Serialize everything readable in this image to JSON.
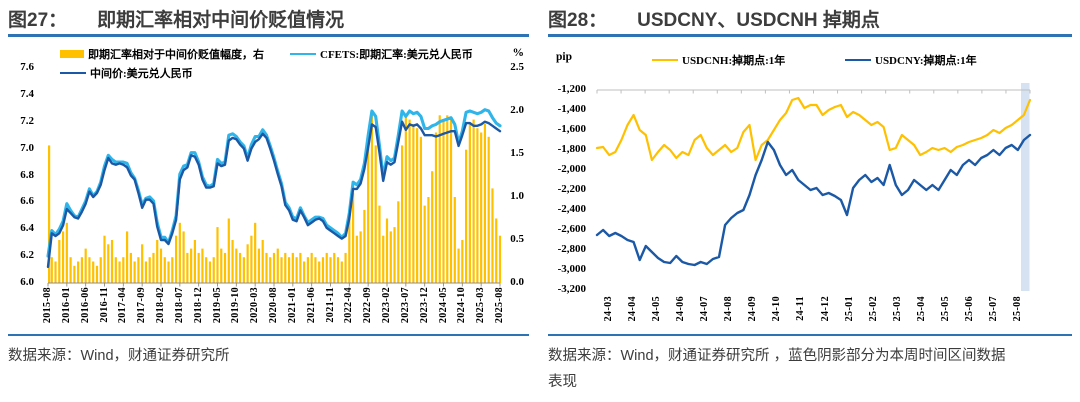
{
  "colors": {
    "accent_rule": "#2E74B5",
    "gold": "#FFC000",
    "navy": "#1B58A6",
    "cyan": "#2FB5E9",
    "band_blue": "#D6E2F2",
    "title_text": "#3d3d3d",
    "source_text": "#3c3c3c"
  },
  "chart_data": [
    {
      "id": "fig27",
      "type": "bar+line",
      "title_label": "图27：",
      "title": "即期汇率相对中间价贬值情况",
      "unit_right": "%",
      "y_left": {
        "min": 6.0,
        "max": 7.6,
        "ticks": [
          "7.6",
          "7.4",
          "7.2",
          "7.0",
          "6.8",
          "6.6",
          "6.4",
          "6.2",
          "6.0"
        ]
      },
      "y_right": {
        "min": 0.0,
        "max": 2.5,
        "ticks": [
          "2.5",
          "2.0",
          "1.5",
          "1.0",
          "0.5",
          "0.0"
        ]
      },
      "x_monthly_start": "2015-08",
      "x_tick_labels": [
        "2015-08",
        "2016-01",
        "2016-06",
        "2016-11",
        "2017-04",
        "2017-09",
        "2018-02",
        "2018-07",
        "2018-12",
        "2019-05",
        "2019-10",
        "2020-03",
        "2020-08",
        "2021-01",
        "2021-06",
        "2021-11",
        "2022-04",
        "2022-09",
        "2023-02",
        "2023-07",
        "2023-12",
        "2024-05",
        "2024-10",
        "2025-03",
        "2025-08"
      ],
      "series": [
        {
          "name": "即期汇率相对于中间价贬值幅度，右",
          "type": "bar",
          "axis": "right",
          "color": "#FFC000",
          "values": [
            1.6,
            0.3,
            0.25,
            0.5,
            0.6,
            0.7,
            0.3,
            0.2,
            0.25,
            0.3,
            0.4,
            0.3,
            0.25,
            0.2,
            0.3,
            0.55,
            0.45,
            0.5,
            0.3,
            0.25,
            0.3,
            0.6,
            0.35,
            0.25,
            0.3,
            0.45,
            0.25,
            0.3,
            0.35,
            0.5,
            0.4,
            0.3,
            0.25,
            0.3,
            0.55,
            0.7,
            0.6,
            0.35,
            0.4,
            0.5,
            0.35,
            0.4,
            0.3,
            0.25,
            0.3,
            0.65,
            0.4,
            0.35,
            0.75,
            0.5,
            0.4,
            0.35,
            0.3,
            0.45,
            0.55,
            0.7,
            0.4,
            0.5,
            0.35,
            0.3,
            0.35,
            0.4,
            0.3,
            0.35,
            0.3,
            0.35,
            0.3,
            0.35,
            0.25,
            0.3,
            0.35,
            0.3,
            0.25,
            0.3,
            0.35,
            0.3,
            0.35,
            0.3,
            0.25,
            0.35,
            0.8,
            1.05,
            0.55,
            0.6,
            0.85,
            1.75,
            1.95,
            1.6,
            0.9,
            0.55,
            0.75,
            0.6,
            0.65,
            0.95,
            1.6,
            1.95,
            1.9,
            1.85,
            1.8,
            1.7,
            0.9,
            1.0,
            1.3,
            1.75,
            1.95,
            1.9,
            1.95,
            1.9,
            1.0,
            0.4,
            0.5,
            1.55,
            1.85,
            1.9,
            1.8,
            1.75,
            1.85,
            1.7,
            1.1,
            0.75,
            0.55
          ]
        },
        {
          "name": "CFETS:即期汇率:美元兑人民币",
          "type": "line",
          "axis": "left",
          "color": "#2FB5E9",
          "values": [
            6.2,
            6.39,
            6.36,
            6.4,
            6.46,
            6.59,
            6.54,
            6.5,
            6.49,
            6.55,
            6.61,
            6.7,
            6.65,
            6.68,
            6.75,
            6.87,
            6.95,
            6.92,
            6.9,
            6.9,
            6.9,
            6.89,
            6.82,
            6.78,
            6.69,
            6.58,
            6.63,
            6.64,
            6.61,
            6.45,
            6.34,
            6.34,
            6.3,
            6.39,
            6.5,
            6.81,
            6.87,
            6.88,
            6.97,
            6.97,
            6.9,
            6.79,
            6.73,
            6.72,
            6.74,
            6.92,
            6.89,
            6.9,
            7.1,
            7.11,
            7.09,
            7.05,
            7.02,
            6.93,
            7.03,
            7.09,
            7.09,
            7.14,
            7.1,
            7.02,
            6.93,
            6.83,
            6.74,
            6.6,
            6.56,
            6.49,
            6.48,
            6.56,
            6.5,
            6.45,
            6.47,
            6.49,
            6.49,
            6.48,
            6.43,
            6.41,
            6.39,
            6.37,
            6.34,
            6.37,
            6.52,
            6.75,
            6.73,
            6.77,
            6.89,
            7.1,
            7.28,
            7.24,
            7.02,
            6.79,
            6.94,
            6.91,
            6.93,
            7.1,
            7.28,
            7.24,
            7.28,
            7.26,
            7.27,
            7.24,
            7.15,
            7.15,
            7.17,
            7.18,
            7.2,
            7.21,
            7.22,
            7.23,
            7.18,
            7.04,
            7.13,
            7.27,
            7.28,
            7.27,
            7.26,
            7.27,
            7.29,
            7.28,
            7.23,
            7.19,
            7.17
          ]
        },
        {
          "name": "中间价:美元兑人民币",
          "type": "line",
          "axis": "left",
          "color": "#1B58A6",
          "values": [
            6.12,
            6.37,
            6.35,
            6.37,
            6.43,
            6.55,
            6.52,
            6.49,
            6.48,
            6.53,
            6.59,
            6.68,
            6.64,
            6.67,
            6.73,
            6.84,
            6.93,
            6.89,
            6.88,
            6.89,
            6.88,
            6.86,
            6.8,
            6.77,
            6.67,
            6.56,
            6.62,
            6.62,
            6.59,
            6.42,
            6.32,
            6.32,
            6.29,
            6.37,
            6.47,
            6.77,
            6.84,
            6.86,
            6.95,
            6.94,
            6.88,
            6.77,
            6.71,
            6.71,
            6.72,
            6.89,
            6.87,
            6.88,
            7.06,
            7.08,
            7.07,
            7.03,
            7.0,
            6.91,
            7.0,
            7.05,
            7.07,
            7.11,
            7.08,
            7.0,
            6.91,
            6.81,
            6.72,
            6.58,
            6.54,
            6.47,
            6.46,
            6.54,
            6.49,
            6.43,
            6.45,
            6.47,
            6.48,
            6.46,
            6.41,
            6.39,
            6.37,
            6.35,
            6.33,
            6.35,
            6.48,
            6.7,
            6.7,
            6.74,
            6.85,
            7.01,
            7.18,
            7.16,
            6.97,
            6.76,
            6.9,
            6.88,
            6.9,
            7.05,
            7.2,
            7.14,
            7.18,
            7.17,
            7.18,
            7.15,
            7.1,
            7.1,
            7.1,
            7.09,
            7.1,
            7.11,
            7.12,
            7.13,
            7.13,
            7.02,
            7.1,
            7.19,
            7.19,
            7.17,
            7.17,
            7.18,
            7.2,
            7.19,
            7.17,
            7.15,
            7.13
          ]
        }
      ],
      "source": "数据来源：Wind，财通证券研究所"
    },
    {
      "id": "fig28",
      "type": "line",
      "title_label": "图28：",
      "title": "USDCNY、USDCNH 掉期点",
      "unit": "pip",
      "y": {
        "min": -3200,
        "max": -1200,
        "ticks": [
          "-1,200",
          "-1,400",
          "-1,600",
          "-1,800",
          "-2,000",
          "-2,200",
          "-2,400",
          "-2,600",
          "-2,800",
          "-3,000",
          "-3,200"
        ]
      },
      "x_tick_labels": [
        "24-03",
        "24-04",
        "24-05",
        "24-06",
        "24-07",
        "24-08",
        "24-09",
        "24-10",
        "24-11",
        "24-12",
        "25-01",
        "25-02",
        "25-03",
        "25-04",
        "25-05",
        "25-06",
        "25-07",
        "25-08"
      ],
      "points_per_month": 4,
      "series": [
        {
          "name": "USDCNH:掉期点:1年",
          "color": "#FFC000",
          "values": [
            -1780,
            -1770,
            -1850,
            -1820,
            -1700,
            -1550,
            -1450,
            -1600,
            -1650,
            -1900,
            -1820,
            -1750,
            -1800,
            -1880,
            -1820,
            -1850,
            -1700,
            -1650,
            -1780,
            -1850,
            -1800,
            -1750,
            -1820,
            -1780,
            -1620,
            -1550,
            -1900,
            -1750,
            -1700,
            -1600,
            -1500,
            -1430,
            -1300,
            -1280,
            -1380,
            -1350,
            -1350,
            -1450,
            -1400,
            -1370,
            -1350,
            -1470,
            -1420,
            -1450,
            -1500,
            -1550,
            -1520,
            -1570,
            -1800,
            -1780,
            -1650,
            -1700,
            -1750,
            -1850,
            -1820,
            -1780,
            -1800,
            -1780,
            -1820,
            -1770,
            -1750,
            -1720,
            -1700,
            -1680,
            -1650,
            -1600,
            -1630,
            -1580,
            -1550,
            -1500,
            -1450,
            -1300
          ]
        },
        {
          "name": "USDCNY:掉期点:1年",
          "color": "#1B58A6",
          "values": [
            -2650,
            -2600,
            -2660,
            -2630,
            -2660,
            -2700,
            -2720,
            -2900,
            -2760,
            -2820,
            -2880,
            -2920,
            -2930,
            -2860,
            -2920,
            -2940,
            -2950,
            -2920,
            -2940,
            -2890,
            -2870,
            -2550,
            -2480,
            -2430,
            -2400,
            -2250,
            -2050,
            -1900,
            -1720,
            -1800,
            -1950,
            -2050,
            -2000,
            -2100,
            -2150,
            -2200,
            -2180,
            -2250,
            -2230,
            -2260,
            -2300,
            -2450,
            -2180,
            -2100,
            -2050,
            -2120,
            -2080,
            -2150,
            -1950,
            -2150,
            -2250,
            -2200,
            -2100,
            -2150,
            -2200,
            -2150,
            -2200,
            -2100,
            -2000,
            -2050,
            -1950,
            -1900,
            -1950,
            -1880,
            -1850,
            -1800,
            -1850,
            -1780,
            -1750,
            -1800,
            -1700,
            -1650
          ]
        }
      ],
      "highlight_band": {
        "color": "#D6E2F2",
        "note": "本周时间区间"
      },
      "source": "数据来源：Wind，财通证券研究所 ，蓝色阴影部分为本周时间区间数据表现"
    }
  ]
}
